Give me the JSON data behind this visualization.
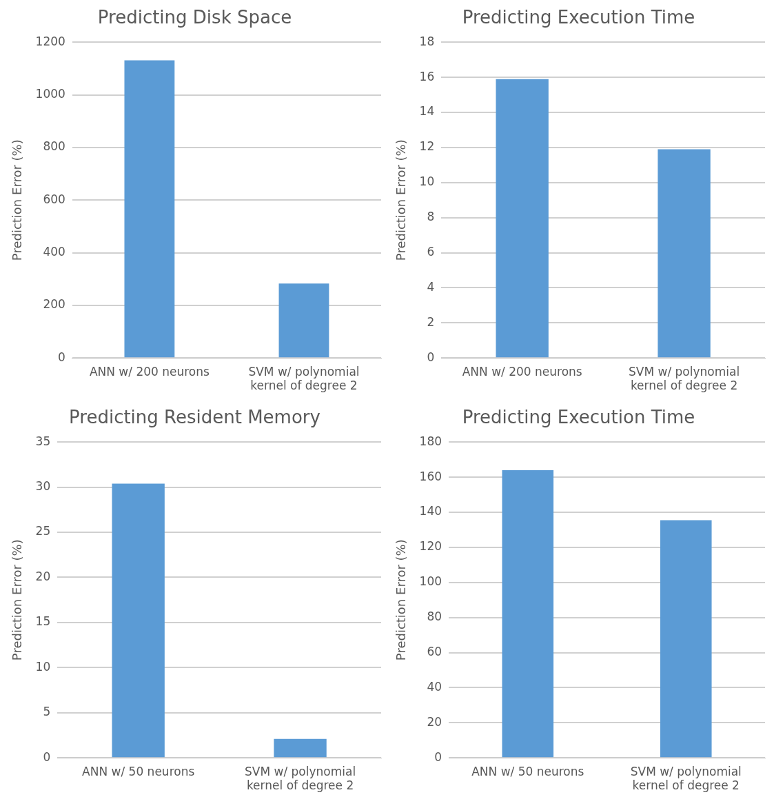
{
  "chart_data": [
    {
      "type": "bar",
      "title": "Predicting Disk Space",
      "ylabel": "Prediction Error (%)",
      "categories": [
        "ANN w/ 200 neurons",
        "SVM w/ polynomial kernel of degree 2"
      ],
      "values": [
        1131,
        283
      ],
      "color": "#5b9bd5",
      "ylim": [
        0,
        1200
      ],
      "yticks": [
        0,
        200,
        400,
        600,
        800,
        1000,
        1200
      ],
      "grid": "y"
    },
    {
      "type": "bar",
      "title": "Predicting Execution Time",
      "ylabel": "Prediction Error (%)",
      "categories": [
        "ANN w/ 200 neurons",
        "SVM w/ polynomial kernel of degree 2"
      ],
      "values": [
        15.9,
        11.9
      ],
      "color": "#5b9bd5",
      "ylim": [
        0,
        18
      ],
      "yticks": [
        0,
        2,
        4,
        6,
        8,
        10,
        12,
        14,
        16,
        18
      ],
      "grid": "y"
    },
    {
      "type": "bar",
      "title": "Predicting Resident Memory",
      "ylabel": "Prediction Error (%)",
      "categories": [
        "ANN w/ 50 neurons",
        "SVM w/ polynomial kernel of degree 2"
      ],
      "values": [
        30.4,
        2.1
      ],
      "color": "#5b9bd5",
      "ylim": [
        0,
        35
      ],
      "yticks": [
        0,
        5,
        10,
        15,
        20,
        25,
        30,
        35
      ],
      "grid": "y"
    },
    {
      "type": "bar",
      "title": "Predicting Execution Time",
      "ylabel": "Prediction Error (%)",
      "categories": [
        "ANN w/ 50 neurons",
        "SVM w/ polynomial kernel of degree 2"
      ],
      "values": [
        164,
        135.5
      ],
      "color": "#5b9bd5",
      "ylim": [
        0,
        180
      ],
      "yticks": [
        0,
        20,
        40,
        60,
        80,
        100,
        120,
        140,
        160,
        180
      ],
      "grid": "y"
    }
  ]
}
